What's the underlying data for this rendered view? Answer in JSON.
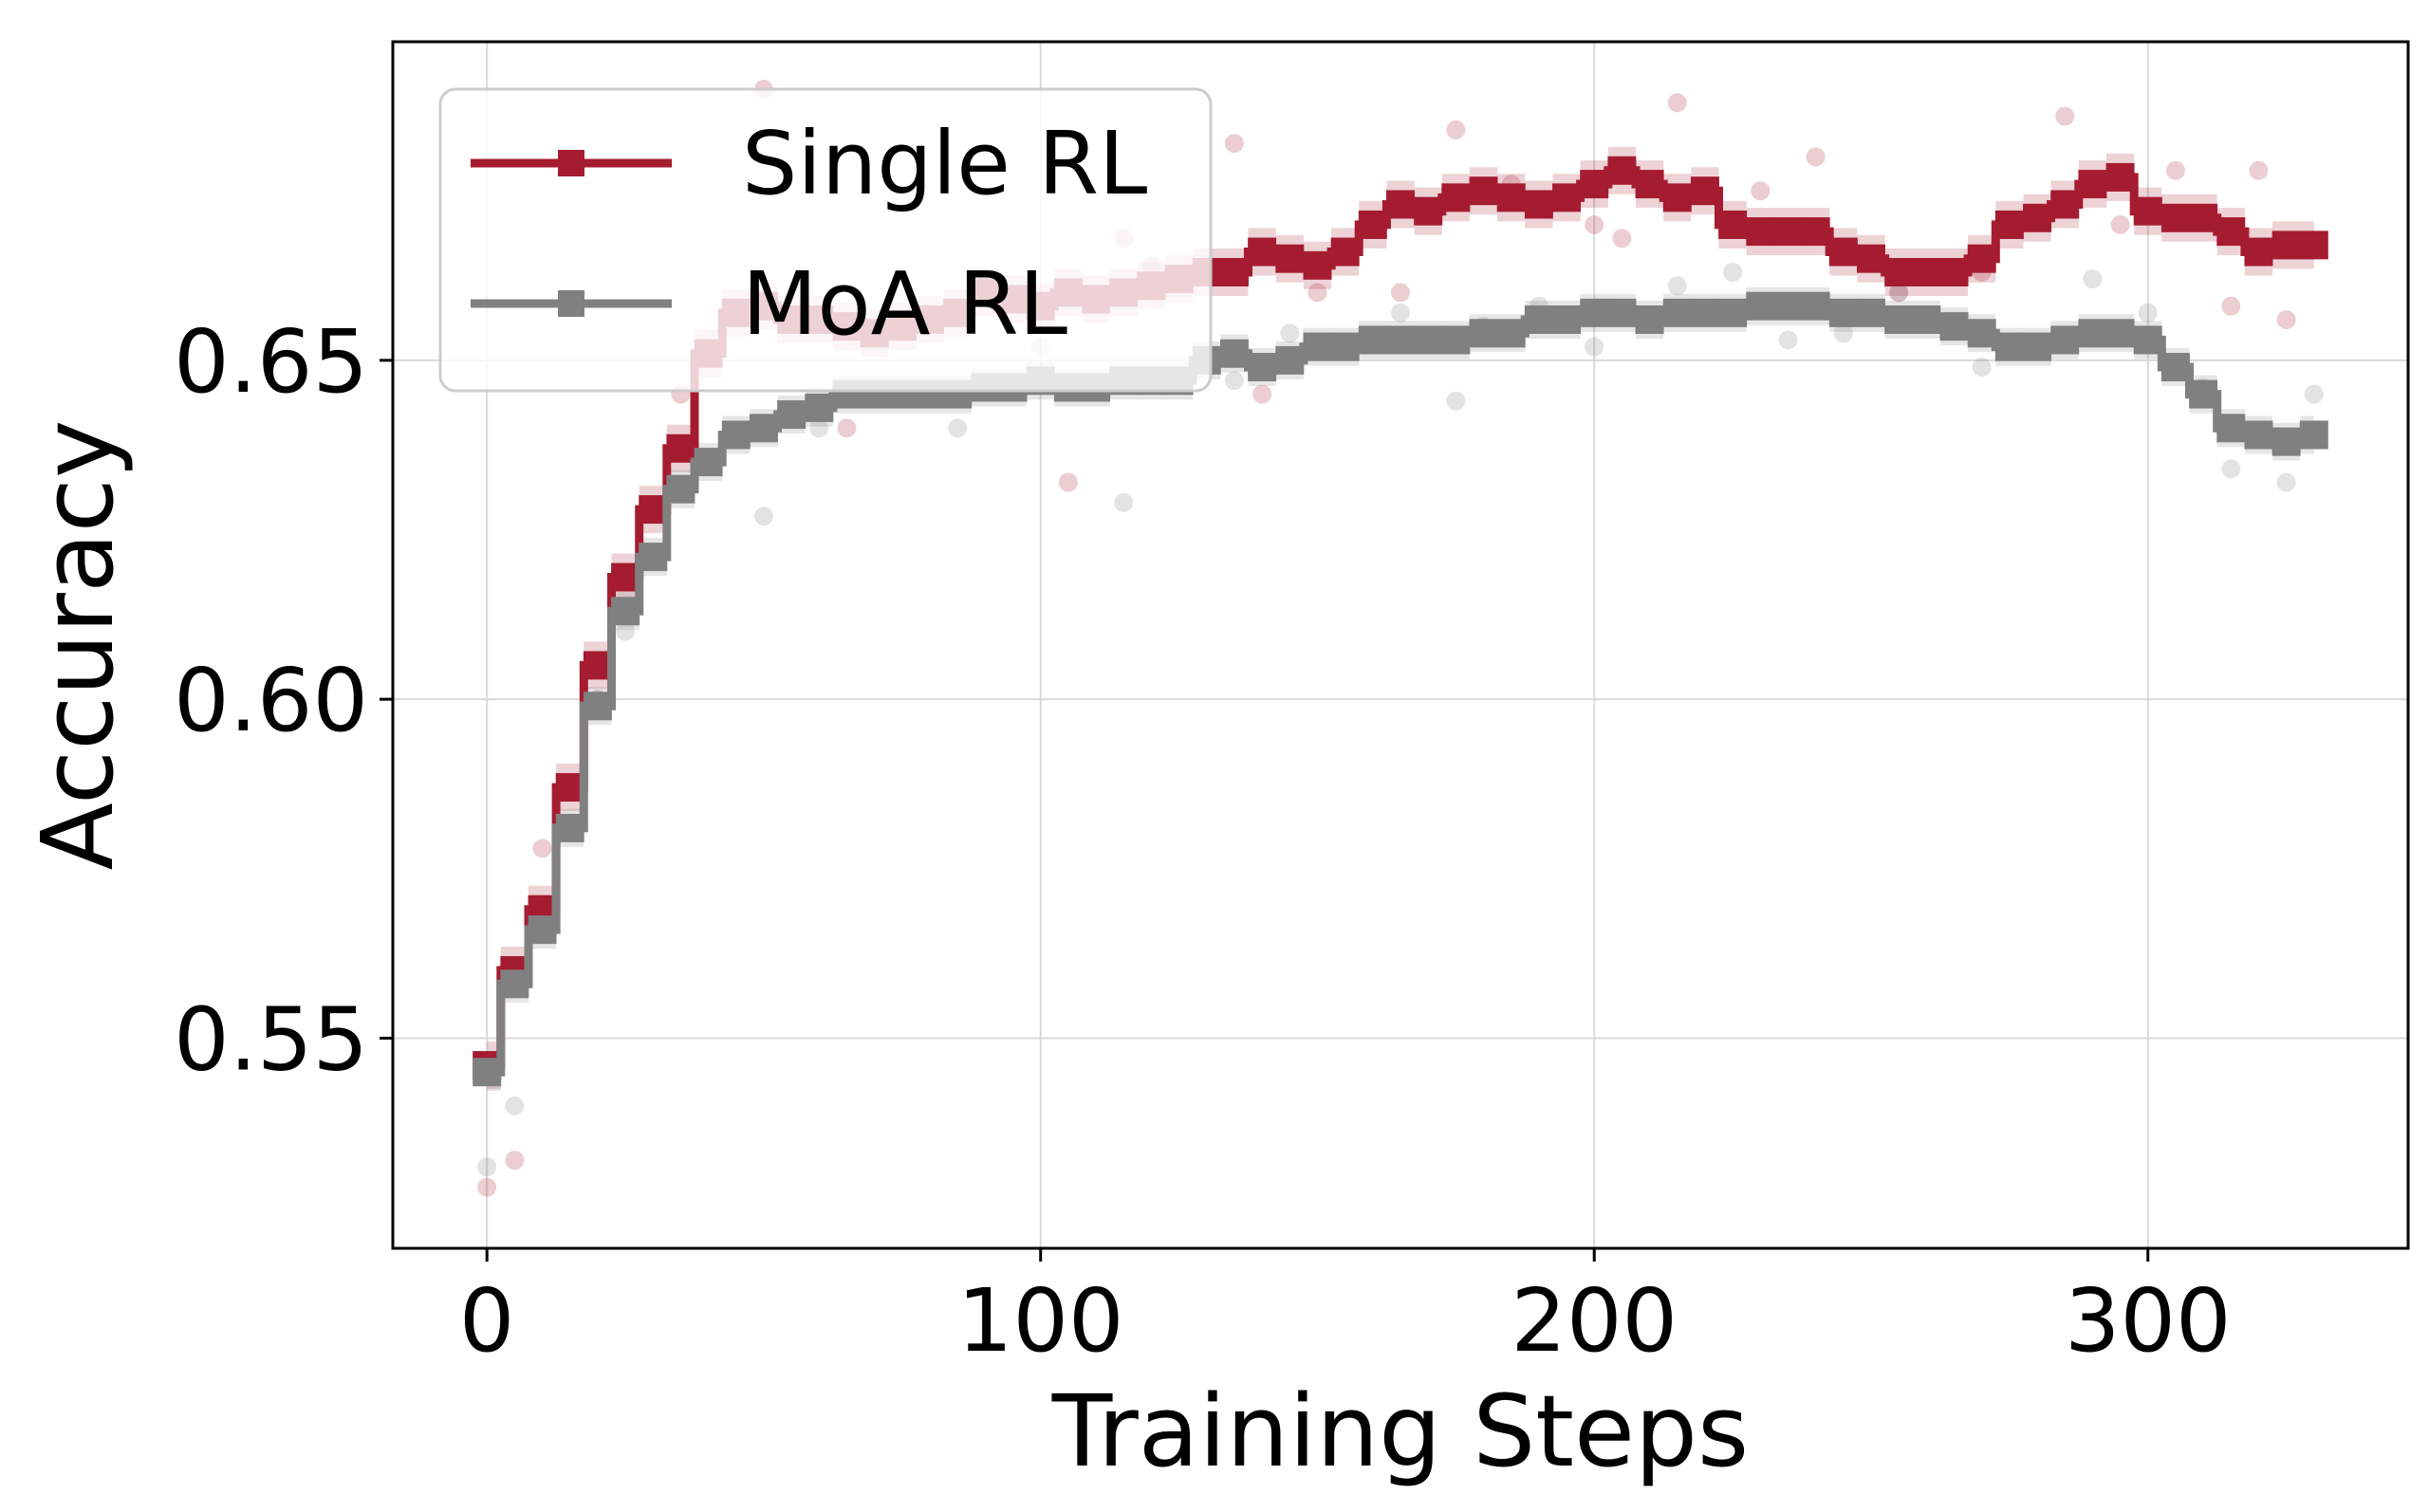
{
  "chart_data": {
    "type": "line",
    "title": "",
    "xlabel": "Training Steps",
    "ylabel": "Accuracy",
    "xlim": [
      -17,
      347
    ],
    "ylim": [
      0.519,
      0.697
    ],
    "xticks": [
      0,
      100,
      200,
      300
    ],
    "yticks": [
      0.55,
      0.6,
      0.65
    ],
    "xtick_labels": [
      "0",
      "100",
      "200",
      "300"
    ],
    "ytick_labels": [
      "0.55",
      "0.60",
      "0.65"
    ],
    "grid": true,
    "legend_position": "top-left",
    "series": [
      {
        "name": "Single RL",
        "color": "#A51C30",
        "band_width": 0.0035,
        "x": [
          0,
          5,
          10,
          15,
          20,
          25,
          30,
          35,
          40,
          45,
          50,
          55,
          60,
          65,
          70,
          75,
          80,
          85,
          90,
          95,
          100,
          105,
          110,
          115,
          120,
          125,
          130,
          135,
          140,
          145,
          150,
          155,
          160,
          165,
          170,
          175,
          180,
          185,
          190,
          195,
          200,
          205,
          210,
          215,
          220,
          225,
          230,
          235,
          240,
          245,
          250,
          255,
          260,
          265,
          270,
          275,
          280,
          285,
          290,
          295,
          300,
          305,
          310,
          315,
          320,
          325,
          330
        ],
        "values": [
          0.546,
          0.56,
          0.569,
          0.587,
          0.605,
          0.618,
          0.628,
          0.637,
          0.651,
          0.657,
          0.658,
          0.656,
          0.656,
          0.655,
          0.654,
          0.655,
          0.656,
          0.657,
          0.66,
          0.659,
          0.658,
          0.66,
          0.659,
          0.66,
          0.661,
          0.662,
          0.663,
          0.663,
          0.666,
          0.665,
          0.664,
          0.666,
          0.67,
          0.673,
          0.672,
          0.674,
          0.675,
          0.674,
          0.673,
          0.674,
          0.676,
          0.678,
          0.676,
          0.674,
          0.675,
          0.67,
          0.669,
          0.669,
          0.669,
          0.666,
          0.665,
          0.663,
          0.663,
          0.663,
          0.665,
          0.67,
          0.671,
          0.673,
          0.676,
          0.677,
          0.672,
          0.671,
          0.671,
          0.669,
          0.666,
          0.667,
          0.667
        ],
        "raw_x": [
          0,
          5,
          10,
          20,
          35,
          50,
          65,
          85,
          105,
          115,
          120,
          135,
          140,
          150,
          165,
          175,
          185,
          200,
          205,
          215,
          230,
          240,
          255,
          270,
          285,
          295,
          305,
          315,
          320,
          325
        ],
        "raw_y": [
          0.528,
          0.532,
          0.578,
          0.6,
          0.645,
          0.69,
          0.64,
          0.645,
          0.632,
          0.668,
          0.664,
          0.682,
          0.645,
          0.66,
          0.66,
          0.684,
          0.676,
          0.67,
          0.668,
          0.688,
          0.675,
          0.68,
          0.66,
          0.663,
          0.686,
          0.67,
          0.678,
          0.658,
          0.678,
          0.656
        ]
      },
      {
        "name": "MoA RL",
        "color": "#808080",
        "band_width": 0.0028,
        "x": [
          0,
          5,
          10,
          15,
          20,
          25,
          30,
          35,
          40,
          45,
          50,
          55,
          60,
          65,
          70,
          75,
          80,
          85,
          90,
          95,
          100,
          105,
          110,
          115,
          120,
          125,
          130,
          135,
          140,
          145,
          150,
          155,
          160,
          165,
          170,
          175,
          180,
          185,
          190,
          195,
          200,
          205,
          210,
          215,
          220,
          225,
          230,
          235,
          240,
          245,
          250,
          255,
          260,
          265,
          270,
          275,
          280,
          285,
          290,
          295,
          300,
          305,
          310,
          315,
          320,
          325,
          330
        ],
        "values": [
          0.545,
          0.558,
          0.566,
          0.581,
          0.599,
          0.613,
          0.621,
          0.631,
          0.635,
          0.639,
          0.64,
          0.642,
          0.643,
          0.645,
          0.645,
          0.645,
          0.645,
          0.645,
          0.646,
          0.646,
          0.647,
          0.646,
          0.646,
          0.647,
          0.647,
          0.647,
          0.65,
          0.651,
          0.649,
          0.65,
          0.652,
          0.652,
          0.653,
          0.653,
          0.653,
          0.653,
          0.654,
          0.654,
          0.656,
          0.656,
          0.657,
          0.657,
          0.656,
          0.657,
          0.657,
          0.657,
          0.658,
          0.658,
          0.658,
          0.657,
          0.657,
          0.656,
          0.656,
          0.655,
          0.654,
          0.652,
          0.652,
          0.653,
          0.654,
          0.654,
          0.653,
          0.649,
          0.645,
          0.64,
          0.639,
          0.638,
          0.639
        ],
        "raw_x": [
          0,
          5,
          25,
          50,
          60,
          85,
          100,
          115,
          135,
          145,
          165,
          175,
          180,
          190,
          200,
          215,
          225,
          235,
          245,
          255,
          270,
          280,
          290,
          300,
          310,
          315,
          325,
          330
        ],
        "raw_y": [
          0.531,
          0.54,
          0.61,
          0.627,
          0.64,
          0.64,
          0.652,
          0.629,
          0.647,
          0.654,
          0.657,
          0.644,
          0.655,
          0.658,
          0.652,
          0.661,
          0.663,
          0.653,
          0.654,
          0.66,
          0.649,
          0.652,
          0.662,
          0.657,
          0.646,
          0.634,
          0.632,
          0.645
        ]
      }
    ]
  }
}
